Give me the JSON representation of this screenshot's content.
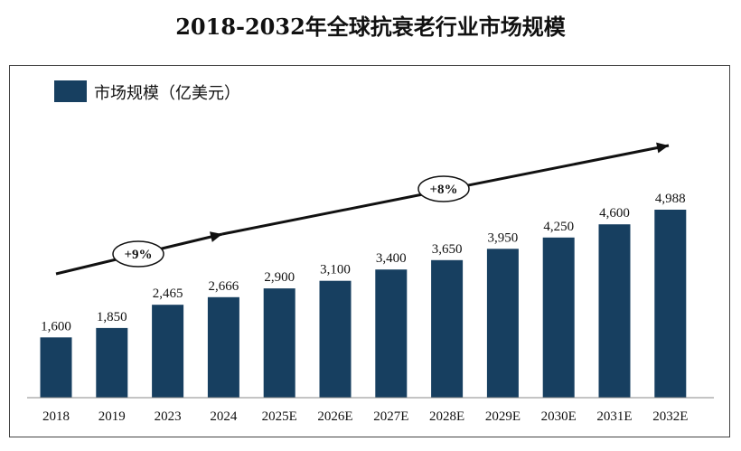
{
  "title": "2018-2032年全球抗衰老行业市场规模",
  "chart_data": {
    "type": "bar",
    "title": "2018-2032年全球抗衰老行业市场规模",
    "categories": [
      "2018",
      "2019",
      "2023",
      "2024",
      "2025E",
      "2026E",
      "2027E",
      "2028E",
      "2029E",
      "2030E",
      "2031E",
      "2032E"
    ],
    "series": [
      {
        "name": "市场规模（亿美元）",
        "values": [
          1600,
          1850,
          2465,
          2666,
          2900,
          3100,
          3400,
          3650,
          3950,
          4250,
          4600,
          4988
        ]
      }
    ],
    "value_labels": [
      "1,600",
      "1,850",
      "2,465",
      "2,666",
      "2,900",
      "3,100",
      "3,400",
      "3,650",
      "3,950",
      "4,250",
      "4,600",
      "4,988"
    ],
    "ylim": [
      0,
      5600
    ],
    "grid": false,
    "legend_position": "top-left",
    "annotations": [
      {
        "text": "+9%",
        "from": "2018",
        "to": "2024"
      },
      {
        "text": "+8%",
        "from": "2024",
        "to": "2032E"
      }
    ],
    "colors": {
      "bar": "#173F60",
      "arrow": "#111111"
    }
  }
}
